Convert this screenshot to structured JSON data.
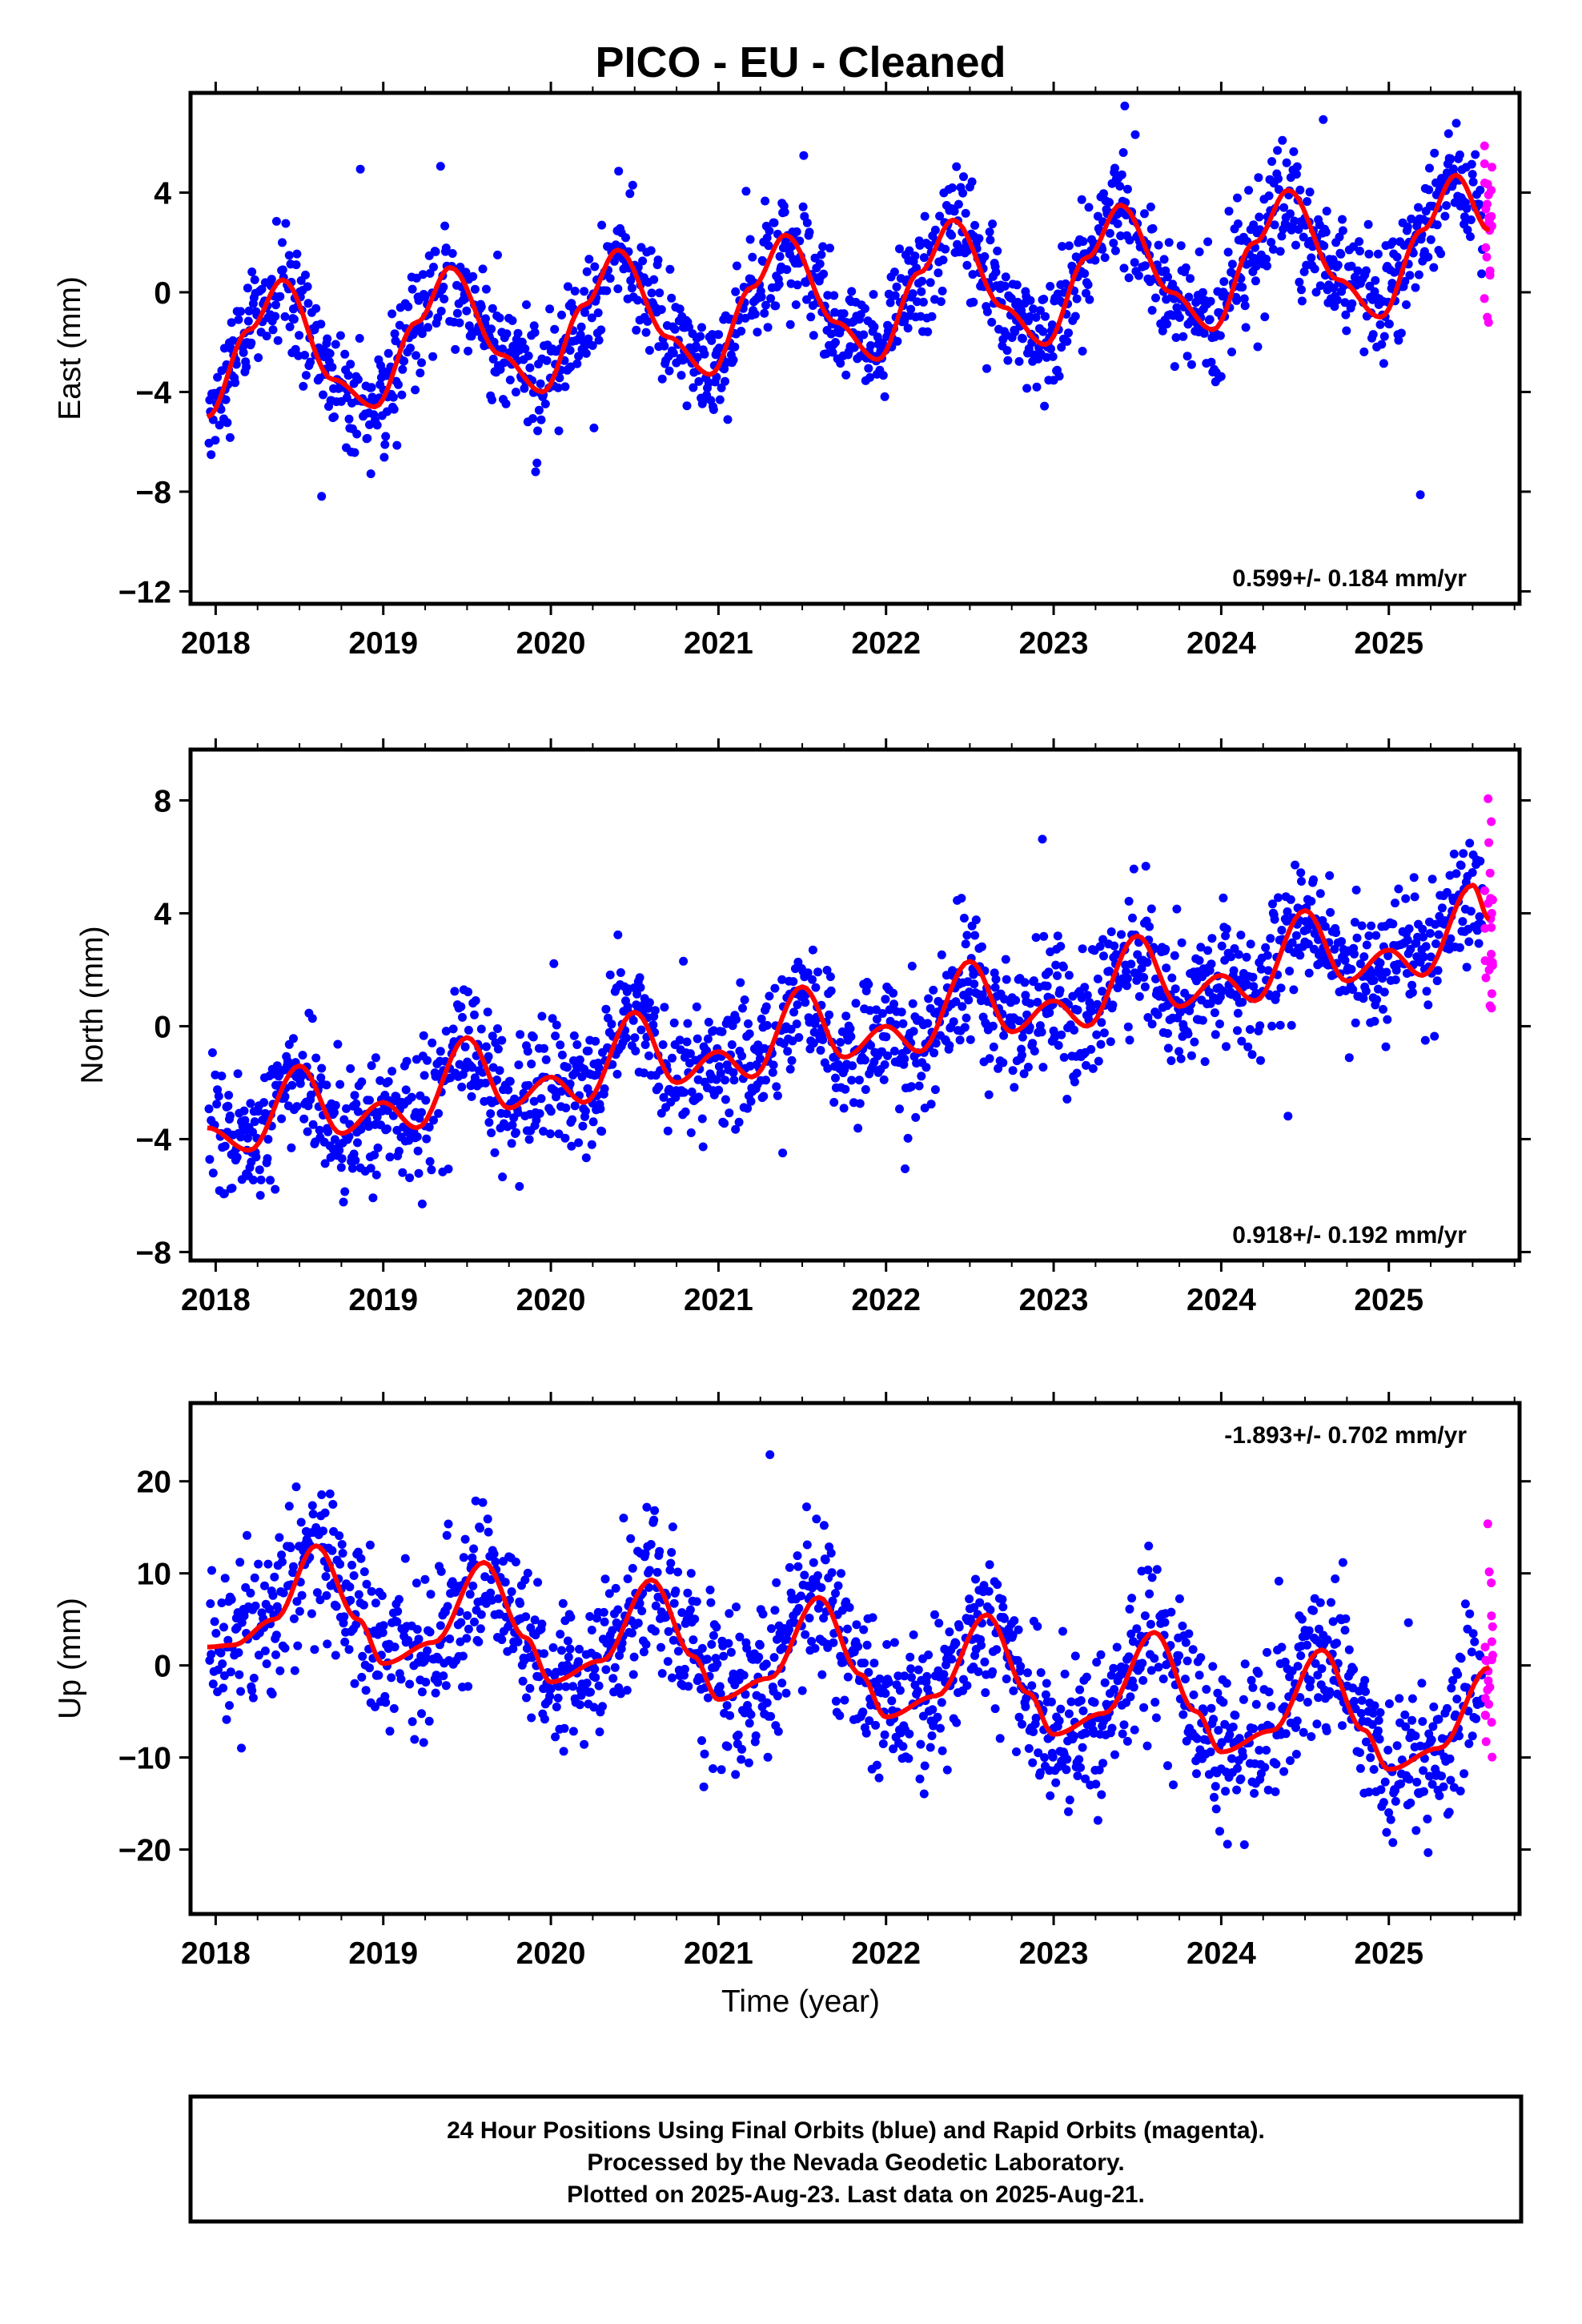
{
  "title": "PICO  - EU - Cleaned",
  "xlabel": "Time (year)",
  "x_tick_labels": [
    "2018",
    "2019",
    "2020",
    "2021",
    "2022",
    "2023",
    "2024",
    "2025"
  ],
  "colors": {
    "final_orbits": "#0000ff",
    "rapid_orbits": "#ff00ff",
    "fit": "#ff0000",
    "frame": "#000000"
  },
  "chart_data": [
    {
      "type": "scatter",
      "panel": "East",
      "ylabel": "East (mm)",
      "xlim": [
        2017.85,
        2025.78
      ],
      "ylim": [
        -12.5,
        8.0
      ],
      "y_tick_labels": [
        "4",
        "0",
        "−4",
        "−8",
        "−12"
      ],
      "y_ticks": [
        4,
        0,
        -4,
        -8,
        -12
      ],
      "rate_text": "0.599+/- 0.184 mm/yr",
      "rate_position": "bottom-right",
      "fit": {
        "amplitude": 2.5,
        "phase_peak": 0.45,
        "trend_start": -2.0,
        "trend_end": 1.0,
        "noise": 1.1
      },
      "fit_curve": {
        "x": [
          2017.95,
          2018.2,
          2018.4,
          2018.7,
          2018.95,
          2019.2,
          2019.4,
          2019.7,
          2019.95,
          2020.2,
          2020.4,
          2020.7,
          2020.95,
          2021.2,
          2021.4,
          2021.7,
          2021.95,
          2022.2,
          2022.4,
          2022.7,
          2022.95,
          2023.2,
          2023.4,
          2023.7,
          2023.95,
          2024.2,
          2024.4,
          2024.7,
          2024.95,
          2025.2,
          2025.4,
          2025.6
        ],
        "y": [
          -5.0,
          -1.5,
          0.5,
          -3.5,
          -4.6,
          -1.2,
          1.0,
          -2.5,
          -4.0,
          -0.5,
          1.7,
          -1.8,
          -3.3,
          0.2,
          2.3,
          -1.2,
          -2.7,
          0.8,
          2.9,
          -0.6,
          -2.1,
          1.4,
          3.5,
          0.0,
          -1.5,
          2.0,
          4.1,
          0.5,
          -1.0,
          2.5,
          4.7,
          2.5
        ]
      }
    },
    {
      "type": "scatter",
      "panel": "North",
      "ylabel": "North (mm)",
      "xlim": [
        2017.85,
        2025.78
      ],
      "ylim": [
        -8.3,
        9.8
      ],
      "y_tick_labels": [
        "8",
        "4",
        "0",
        "−4",
        "−8"
      ],
      "y_ticks": [
        8,
        4,
        0,
        -4,
        -8
      ],
      "rate_text": "0.918+/- 0.192 mm/yr",
      "rate_position": "bottom-right",
      "fit_curve": {
        "x": [
          2017.95,
          2018.2,
          2018.5,
          2018.75,
          2019.0,
          2019.2,
          2019.5,
          2019.75,
          2020.0,
          2020.2,
          2020.5,
          2020.75,
          2021.0,
          2021.2,
          2021.5,
          2021.75,
          2022.0,
          2022.2,
          2022.5,
          2022.75,
          2023.0,
          2023.2,
          2023.5,
          2023.75,
          2024.0,
          2024.2,
          2024.5,
          2024.75,
          2025.0,
          2025.2,
          2025.5,
          2025.6
        ],
        "y": [
          -3.6,
          -4.4,
          -1.4,
          -3.8,
          -2.7,
          -3.6,
          -0.4,
          -2.9,
          -1.8,
          -2.7,
          0.5,
          -2.0,
          -0.9,
          -1.8,
          1.4,
          -1.1,
          0.0,
          -0.9,
          2.3,
          -0.2,
          0.9,
          0.0,
          3.2,
          0.7,
          1.8,
          0.9,
          4.1,
          1.6,
          2.7,
          1.8,
          5.0,
          3.8
        ]
      }
    },
    {
      "type": "scatter",
      "panel": "Up",
      "ylabel": "Up (mm)",
      "xlim": [
        2017.85,
        2025.78
      ],
      "ylim": [
        -27.0,
        28.5
      ],
      "y_tick_labels": [
        "20",
        "10",
        "0",
        "−10",
        "−20"
      ],
      "y_ticks": [
        20,
        10,
        0,
        -10,
        -20
      ],
      "rate_text": "-1.893+/- 0.702 mm/yr",
      "rate_position": "top-right",
      "fit_curve": {
        "x": [
          2017.95,
          2018.1,
          2018.35,
          2018.6,
          2018.85,
          2019.0,
          2019.3,
          2019.6,
          2019.85,
          2020.0,
          2020.3,
          2020.6,
          2020.85,
          2021.0,
          2021.3,
          2021.6,
          2021.85,
          2022.0,
          2022.3,
          2022.6,
          2022.85,
          2023.0,
          2023.3,
          2023.6,
          2023.85,
          2024.0,
          2024.3,
          2024.6,
          2024.85,
          2025.0,
          2025.3,
          2025.6
        ],
        "y": [
          2.0,
          2.2,
          5.0,
          13.0,
          5.0,
          0.2,
          2.5,
          11.2,
          3.0,
          -1.8,
          0.5,
          9.3,
          1.0,
          -3.7,
          -1.4,
          7.4,
          -1.0,
          -5.6,
          -3.3,
          5.5,
          -3.0,
          -7.5,
          -5.2,
          3.6,
          -5.0,
          -9.4,
          -7.1,
          1.7,
          -7.0,
          -11.3,
          -9.0,
          -0.2
        ]
      }
    }
  ],
  "footer": {
    "line1": "24 Hour Positions Using Final Orbits (blue) and Rapid Orbits (magenta).",
    "line2": "Processed by the Nevada Geodetic Laboratory.",
    "line3": "Plotted on 2025-Aug-23. Last data on 2025-Aug-21."
  }
}
